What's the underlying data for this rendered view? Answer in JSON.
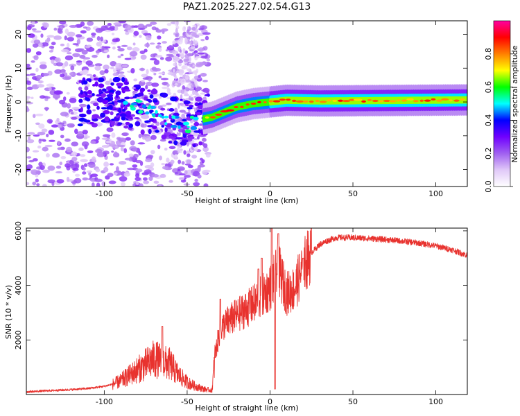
{
  "title": "PAZ1.2025.227.02.54.G13",
  "chart_data": [
    {
      "type": "heatmap",
      "xlabel": "Height of straight line (km)",
      "ylabel": "Frequency (Hz)",
      "xlim": [
        -147,
        119
      ],
      "ylim": [
        -25,
        24
      ],
      "xticks": [
        -100,
        -50,
        0,
        50,
        100
      ],
      "yticks": [
        -20,
        -10,
        0,
        10,
        20
      ],
      "colorbar": {
        "label": "Normalized spectral amplitude",
        "range": [
          0,
          1
        ],
        "ticks": [
          "0.0",
          "0.2",
          "0.4",
          "0.6",
          "0.8"
        ],
        "colors": [
          "#ffffff",
          "#e0c8f8",
          "#a060f0",
          "#7000ff",
          "#0000ff",
          "#00ffff",
          "#00ff00",
          "#ffff00",
          "#ff8000",
          "#ff0000",
          "#ff00a0"
        ]
      },
      "ridge": [
        {
          "x": -90,
          "y": 0
        },
        {
          "x": -80,
          "y": -1.5
        },
        {
          "x": -70,
          "y": -3
        },
        {
          "x": -60,
          "y": -5
        },
        {
          "x": -50,
          "y": -7
        },
        {
          "x": -40,
          "y": -5
        },
        {
          "x": -35,
          "y": -4.5
        },
        {
          "x": -30,
          "y": -3.5
        },
        {
          "x": -25,
          "y": -2.5
        },
        {
          "x": -20,
          "y": -1.5
        },
        {
          "x": -10,
          "y": -0.5
        },
        {
          "x": 0,
          "y": 0
        },
        {
          "x": 10,
          "y": 0.5
        },
        {
          "x": 30,
          "y": 0.3
        },
        {
          "x": 60,
          "y": 0.4
        },
        {
          "x": 90,
          "y": 0.5
        },
        {
          "x": 119,
          "y": 0.6
        }
      ]
    },
    {
      "type": "line",
      "xlabel": "Height of straight line (km)",
      "ylabel": "SNR (10 * v/v)",
      "xlim": [
        -147,
        119
      ],
      "ylim": [
        0,
        6100
      ],
      "xticks": [
        -100,
        -50,
        0,
        50,
        100
      ],
      "yticks": [
        2000,
        4000,
        6000
      ],
      "color": "#e8322e",
      "x": [
        -147,
        -140,
        -130,
        -120,
        -110,
        -100,
        -95,
        -90,
        -85,
        -80,
        -75,
        -70,
        -65,
        -60,
        -55,
        -50,
        -45,
        -40,
        -35,
        -33,
        -30,
        -25,
        -20,
        -15,
        -10,
        -5,
        0,
        3,
        5,
        10,
        15,
        20,
        25,
        30,
        35,
        40,
        50,
        60,
        70,
        80,
        90,
        100,
        110,
        119
      ],
      "y": [
        100,
        120,
        150,
        180,
        220,
        300,
        380,
        500,
        700,
        900,
        1100,
        1300,
        1200,
        1100,
        700,
        450,
        300,
        200,
        150,
        1500,
        2400,
        2700,
        2900,
        3100,
        3300,
        3600,
        3900,
        4300,
        4600,
        3700,
        3900,
        4700,
        5200,
        5500,
        5650,
        5750,
        5750,
        5720,
        5680,
        5620,
        5550,
        5450,
        5300,
        5100
      ],
      "spikes": [
        {
          "x": -65,
          "y": 2500
        },
        {
          "x": -30,
          "y": 3500
        },
        {
          "x": -12,
          "y": 3800
        },
        {
          "x": -7,
          "y": 4600
        },
        {
          "x": -5,
          "y": 5000
        },
        {
          "x": 1,
          "y": 6100
        },
        {
          "x": 3,
          "y": 200
        },
        {
          "x": 5,
          "y": 5900
        },
        {
          "x": 20,
          "y": 5000
        }
      ]
    }
  ]
}
